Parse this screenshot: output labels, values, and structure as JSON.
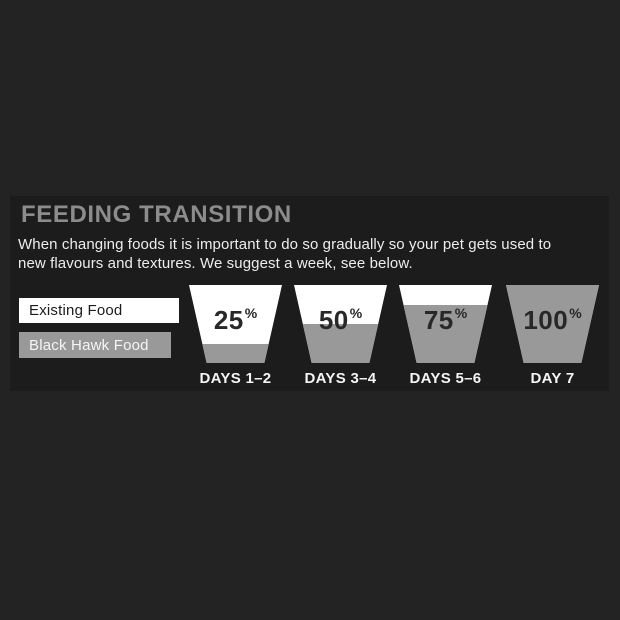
{
  "canvas": {
    "background": "#232323"
  },
  "panel": {
    "background": "#1c1c1c",
    "title": "FEEDING TRANSITION",
    "title_color": "#8c8c8c",
    "intro_line1": "When changing foods it is important to do so gradually so your pet gets used to",
    "intro_line2": "new flavours and textures. We suggest a week, see below.",
    "intro_color": "#ededed",
    "legend": {
      "existing": {
        "label": "Existing Food",
        "swatch_color": "#ffffff",
        "text_color": "#1c1c1c"
      },
      "blackhawk": {
        "label": "Black Hawk Food",
        "swatch_color": "#999999",
        "text_color": "#f5f5f5"
      }
    },
    "percent_text_color": "#282828",
    "day_label_color": "#f5f5f5",
    "steps": [
      {
        "value": "25",
        "unit": "%",
        "fill_percent": 25,
        "day_label": "DAYS 1–2"
      },
      {
        "value": "50",
        "unit": "%",
        "fill_percent": 50,
        "day_label": "DAYS 3–4"
      },
      {
        "value": "75",
        "unit": "%",
        "fill_percent": 75,
        "day_label": "DAYS 5–6"
      },
      {
        "value": "100",
        "unit": "%",
        "fill_percent": 100,
        "day_label": "DAY 7"
      }
    ]
  },
  "chart_data": {
    "type": "bar",
    "title": "FEEDING TRANSITION",
    "categories": [
      "DAYS 1–2",
      "DAYS 3–4",
      "DAYS 5–6",
      "DAY 7"
    ],
    "series": [
      {
        "name": "Black Hawk Food",
        "values": [
          25,
          50,
          75,
          100
        ],
        "color": "#999999"
      },
      {
        "name": "Existing Food",
        "values": [
          75,
          50,
          25,
          0
        ],
        "color": "#ffffff"
      }
    ],
    "ylim": [
      0,
      100
    ],
    "legend_position": "left"
  }
}
